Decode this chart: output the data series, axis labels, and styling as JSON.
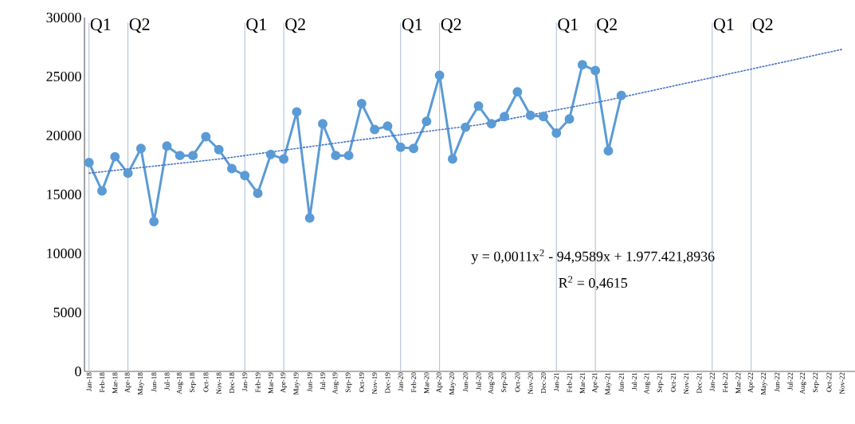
{
  "chart_data": {
    "type": "line",
    "categories": [
      "Jan-18",
      "Feb-18",
      "Mar-18",
      "Apr-18",
      "May-18",
      "Jun-18",
      "Jul-18",
      "Aug-18",
      "Sep-18",
      "Oct-18",
      "Nov-18",
      "Dec-18",
      "Jan-19",
      "Feb-19",
      "Mar-19",
      "Apr-19",
      "May-19",
      "Jun-19",
      "Jul-19",
      "Aug-19",
      "Sep-19",
      "Oct-19",
      "Nov-19",
      "Dec-19",
      "Jan-20",
      "Feb-20",
      "Mar-20",
      "Apr-20",
      "May-20",
      "Jun-20",
      "Jul-20",
      "Aug-20",
      "Sep-20",
      "Oct-20",
      "Nov-20",
      "Dec-20",
      "Jan-21",
      "Feb-21",
      "Mar-21",
      "Apr-21",
      "May-21",
      "Jun-21",
      "Jul-21",
      "Aug-21",
      "Sep-21",
      "Oct-21",
      "Nov-21",
      "Dec-21",
      "Jan-22",
      "Feb-22",
      "Mar-22",
      "Apr-22",
      "May-22",
      "Jun-22",
      "Jul-22",
      "Aug-22",
      "Sep-22",
      "Oct-22",
      "Nov-22"
    ],
    "series": [
      {
        "color": "#5b9bd5",
        "marker": "circle",
        "line_style": "solid",
        "values": [
          17700,
          15300,
          18200,
          16800,
          18900,
          12700,
          19100,
          18300,
          18300,
          19900,
          18800,
          17200,
          16600,
          15100,
          18400,
          18000,
          22000,
          13000,
          21000,
          18300,
          18300,
          22700,
          20500,
          20800,
          19000,
          18900,
          21200,
          25100,
          18000,
          20700,
          22500,
          21000,
          21600,
          23700,
          21700,
          21600,
          20200,
          21400,
          26000,
          25500,
          18700,
          23400,
          null,
          null,
          null,
          null,
          null,
          null,
          null,
          null,
          null,
          null,
          null,
          null,
          null,
          null,
          null,
          null,
          null
        ]
      },
      {
        "type": "line",
        "color": "#4472c4",
        "marker": "none",
        "line_style": "dotted",
        "x": [
          "Jan-18",
          "Nov-18",
          "Sep-19",
          "Jul-20",
          "May-21",
          "Nov-22"
        ],
        "values": [
          16800,
          18000,
          19500,
          20900,
          23000,
          27300
        ]
      }
    ],
    "ylim": [
      0,
      30000
    ],
    "yticks": [
      0,
      5000,
      10000,
      15000,
      20000,
      25000,
      30000
    ],
    "grid": false,
    "legend": false,
    "ref_lines": [
      {
        "axis": "x",
        "value": "Jan-18",
        "label": "Q1",
        "color": "#a9bdd6"
      },
      {
        "axis": "x",
        "value": "Apr-18",
        "label": "Q2",
        "color": "#a9bdd6"
      },
      {
        "axis": "x",
        "value": "Jan-19",
        "label": "Q1",
        "color": "#a9bdd6"
      },
      {
        "axis": "x",
        "value": "Apr-19",
        "label": "Q2",
        "color": "#a9bdd6"
      },
      {
        "axis": "x",
        "value": "Jan-20",
        "label": "Q1",
        "color": "#a9bdd6"
      },
      {
        "axis": "x",
        "value": "Apr-20",
        "label": "Q2",
        "color": "#a9bdd6"
      },
      {
        "axis": "x",
        "value": "Jan-21",
        "label": "Q1",
        "color": "#a9bdd6"
      },
      {
        "axis": "x",
        "value": "Apr-21",
        "label": "Q2",
        "color": "#a9bdd6"
      },
      {
        "axis": "x",
        "value": "Jan-22",
        "label": "Q1",
        "color": "#a9bdd6"
      },
      {
        "axis": "x",
        "value": "Apr-22",
        "label": "Q2",
        "color": "#a9bdd6"
      }
    ],
    "annotations": [
      "y = 0,0011x$^{2}$ - 94,9589x + 1.977.421,8936",
      "R$^{2}$ = 0,4615"
    ]
  }
}
